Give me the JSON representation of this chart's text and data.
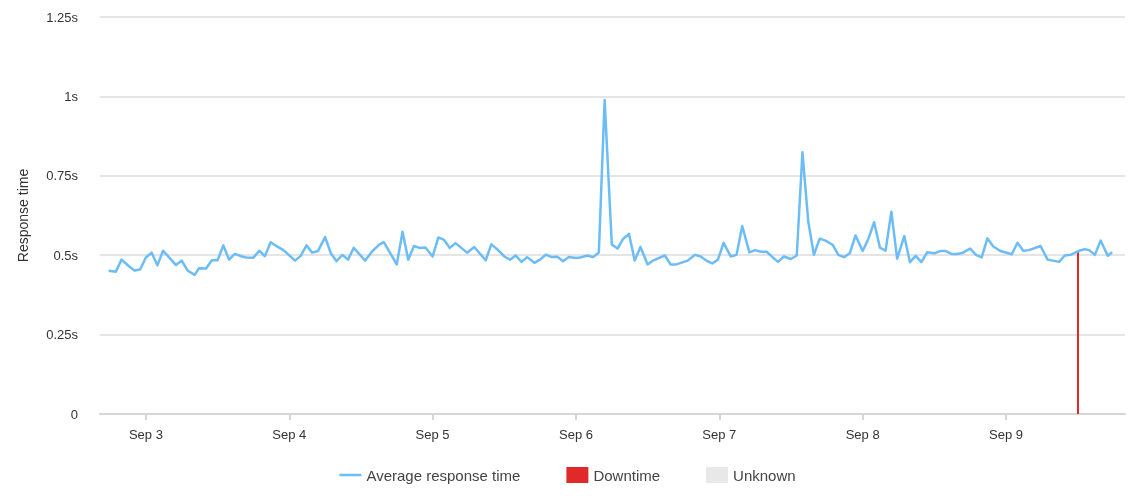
{
  "chart_data": {
    "type": "line",
    "ylabel": "Response time",
    "xlim": [
      "--09-02T16:19",
      "--09-09T19:55"
    ],
    "xticks": [
      {
        "value": "--09-03",
        "label": "Sep 3"
      },
      {
        "value": "--09-04",
        "label": "Sep 4"
      },
      {
        "value": "--09-05",
        "label": "Sep 5"
      },
      {
        "value": "--09-06",
        "label": "Sep 6"
      },
      {
        "value": "--09-07",
        "label": "Sep 7"
      },
      {
        "value": "--09-08",
        "label": "Sep 8"
      },
      {
        "value": "--09-09",
        "label": "Sep 9"
      }
    ],
    "ylim": [
      0,
      1.25
    ],
    "yticks": [
      {
        "value": 0,
        "label": "0"
      },
      {
        "value": 0.25,
        "label": "0.25s"
      },
      {
        "value": 0.5,
        "label": "0.5s"
      },
      {
        "value": 0.75,
        "label": "0.75s"
      },
      {
        "value": 1,
        "label": "1s"
      },
      {
        "value": 1.25,
        "label": "1.25s"
      }
    ],
    "grid": "y",
    "legend": "bottom",
    "marker": "none",
    "series": [
      {
        "name": "Average response time",
        "color": "#6cbdf7",
        "x": [
          "--09-02T17:46",
          "--09-02T18:58",
          "--09-02T19:55",
          "--09-02T21:07",
          "--09-02T22:05",
          "--09-02T23:02",
          "--09-03T00:00",
          "--09-03T00:58",
          "--09-03T01:55",
          "--09-03T02:53",
          "--09-03T05:02",
          "--09-03T06:00",
          "--09-03T06:58",
          "--09-03T08:10",
          "--09-03T08:53",
          "--09-03T10:05",
          "--09-03T11:02",
          "--09-03T12:00",
          "--09-03T12:58",
          "--09-03T13:55",
          "--09-03T14:53",
          "--09-03T16:05",
          "--09-03T16:48",
          "--09-03T18:00",
          "--09-03T18:58",
          "--09-03T19:55",
          "--09-03T20:53",
          "--09-03T22:05",
          "--09-03T23:02",
          "--09-04T00:58",
          "--09-04T01:55",
          "--09-04T02:53",
          "--09-04T03:50",
          "--09-04T04:48",
          "--09-04T06:00",
          "--09-04T06:58",
          "--09-04T07:55",
          "--09-04T08:53",
          "--09-04T09:50",
          "--09-04T10:48",
          "--09-04T12:43",
          "--09-04T13:55",
          "--09-04T15:07",
          "--09-04T15:50",
          "--09-04T18:00",
          "--09-04T18:58",
          "--09-04T19:55",
          "--09-04T20:53",
          "--09-04T21:50",
          "--09-04T22:48",
          "--09-05T00:00",
          "--09-05T00:58",
          "--09-05T01:55",
          "--09-05T02:53",
          "--09-05T03:50",
          "--09-05T05:46",
          "--09-05T06:58",
          "--09-05T08:53",
          "--09-05T09:50",
          "--09-05T10:48",
          "--09-05T12:00",
          "--09-05T12:58",
          "--09-05T13:55",
          "--09-05T14:53",
          "--09-05T15:50",
          "--09-05T17:02",
          "--09-05T18:00",
          "--09-05T18:58",
          "--09-05T19:55",
          "--09-05T20:53",
          "--09-05T21:50",
          "--09-05T22:48",
          "--09-06T00:00",
          "--09-06T00:43",
          "--09-06T01:55",
          "--09-06T02:53",
          "--09-06T03:50",
          "--09-06T04:48",
          "--09-06T06:00",
          "--09-06T06:58",
          "--09-06T07:55",
          "--09-06T08:53",
          "--09-06T09:50",
          "--09-06T10:48",
          "--09-06T12:00",
          "--09-06T12:58",
          "--09-06T14:53",
          "--09-06T15:50",
          "--09-06T16:48",
          "--09-06T18:43",
          "--09-06T19:55",
          "--09-06T20:53",
          "--09-06T21:50",
          "--09-06T22:48",
          "--09-06T23:46",
          "--09-07T00:43",
          "--09-07T01:55",
          "--09-07T02:53",
          "--09-07T03:50",
          "--09-07T05:02",
          "--09-07T06:00",
          "--09-07T06:58",
          "--09-07T07:55",
          "--09-07T09:22",
          "--09-07T09:50",
          "--09-07T10:48",
          "--09-07T12:00",
          "--09-07T12:58",
          "--09-07T13:55",
          "--09-07T14:53",
          "--09-07T15:50",
          "--09-07T16:48",
          "--09-07T17:46",
          "--09-07T18:58",
          "--09-07T19:55",
          "--09-07T20:53",
          "--09-07T21:50",
          "--09-07T22:48",
          "--09-08T00:00",
          "--09-08T00:58",
          "--09-08T01:55",
          "--09-08T02:53",
          "--09-08T03:50",
          "--09-08T04:48",
          "--09-08T05:46",
          "--09-08T06:58",
          "--09-08T07:55",
          "--09-08T08:53",
          "--09-08T09:50",
          "--09-08T10:48",
          "--09-08T12:00",
          "--09-08T12:58",
          "--09-08T13:55",
          "--09-08T14:53",
          "--09-08T15:50",
          "--09-08T16:48",
          "--09-08T18:00",
          "--09-08T18:58",
          "--09-08T19:55",
          "--09-08T20:53",
          "--09-08T21:50",
          "--09-08T23:02",
          "--09-09T00:58",
          "--09-09T01:55",
          "--09-09T02:53",
          "--09-09T03:50",
          "--09-09T05:46",
          "--09-09T06:58",
          "--09-09T08:53",
          "--09-09T09:50",
          "--09-09T10:48",
          "--09-09T12:14",
          "--09-09T13:12",
          "--09-09T13:55",
          "--09-09T14:53",
          "--09-09T15:50",
          "--09-09T17:02",
          "--09-09T17:46"
        ],
        "values": [
          0.451,
          0.448,
          0.486,
          0.466,
          0.452,
          0.455,
          0.493,
          0.508,
          0.468,
          0.514,
          0.469,
          0.483,
          0.452,
          0.438,
          0.459,
          0.458,
          0.484,
          0.484,
          0.531,
          0.486,
          0.504,
          0.496,
          0.493,
          0.492,
          0.514,
          0.497,
          0.541,
          0.526,
          0.516,
          0.483,
          0.498,
          0.531,
          0.508,
          0.513,
          0.557,
          0.506,
          0.481,
          0.501,
          0.486,
          0.523,
          0.483,
          0.513,
          0.534,
          0.541,
          0.471,
          0.574,
          0.486,
          0.529,
          0.523,
          0.524,
          0.496,
          0.556,
          0.548,
          0.523,
          0.538,
          0.508,
          0.526,
          0.484,
          0.534,
          0.519,
          0.496,
          0.486,
          0.499,
          0.479,
          0.494,
          0.476,
          0.486,
          0.502,
          0.494,
          0.495,
          0.481,
          0.494,
          0.491,
          0.493,
          0.499,
          0.494,
          0.509,
          0.989,
          0.534,
          0.521,
          0.552,
          0.567,
          0.483,
          0.526,
          0.471,
          0.484,
          0.499,
          0.471,
          0.471,
          0.483,
          0.501,
          0.496,
          0.483,
          0.474,
          0.486,
          0.539,
          0.496,
          0.501,
          0.592,
          0.509,
          0.516,
          0.511,
          0.511,
          0.486,
          0.479,
          0.496,
          0.488,
          0.499,
          0.824,
          0.607,
          0.501,
          0.552,
          0.546,
          0.533,
          0.501,
          0.494,
          0.506,
          0.562,
          0.513,
          0.552,
          0.604,
          0.524,
          0.514,
          0.637,
          0.489,
          0.56,
          0.478,
          0.498,
          0.478,
          0.509,
          0.506,
          0.513,
          0.513,
          0.504,
          0.504,
          0.508,
          0.521,
          0.501,
          0.493,
          0.553,
          0.528,
          0.513,
          0.503,
          0.539,
          0.514,
          0.516,
          0.529,
          0.486,
          0.479,
          0.499,
          0.501,
          0.514,
          0.519,
          0.516,
          0.501,
          0.546,
          0.498,
          0.509
        ]
      },
      {
        "name": "Downtime",
        "type": "bar",
        "color": "#e02a2a",
        "x": [
          "--09-09T12:14"
        ],
        "values": [
          0.514
        ]
      },
      {
        "name": "Unknown",
        "type": "bar",
        "color": "#e8e8e8"
      }
    ]
  }
}
